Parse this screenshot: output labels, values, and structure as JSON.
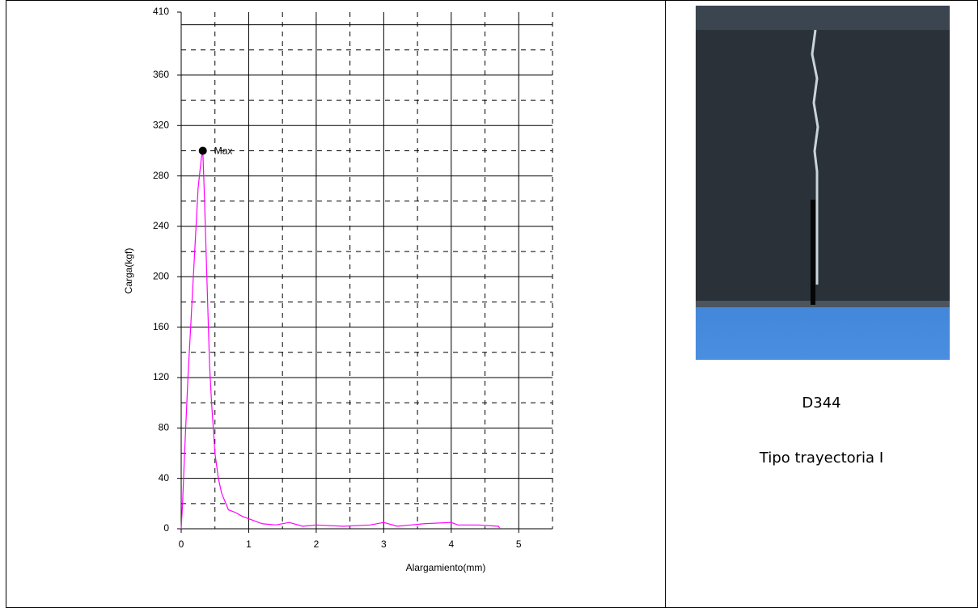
{
  "chart_data": {
    "type": "line",
    "xlabel": "Alargamiento(mm)",
    "ylabel": "Carga(kgf)",
    "x": [
      0,
      0.02,
      0.05,
      0.1,
      0.15,
      0.2,
      0.25,
      0.28,
      0.3,
      0.32,
      0.34,
      0.38,
      0.42,
      0.45,
      0.5,
      0.55,
      0.6,
      0.7,
      0.8,
      0.9,
      1.0,
      1.2,
      1.4,
      1.6,
      1.8,
      2.0,
      2.4,
      2.8,
      3.0,
      3.2,
      3.6,
      4.0,
      4.1,
      4.4,
      4.7,
      4.72
    ],
    "series": [
      {
        "color": "#ff00ff",
        "values": [
          0,
          20,
          60,
          120,
          170,
          220,
          270,
          285,
          295,
          300,
          270,
          200,
          130,
          100,
          60,
          40,
          28,
          15,
          13,
          10,
          8,
          4,
          3,
          5,
          2,
          3,
          2,
          3,
          5,
          2,
          4,
          5,
          3,
          3,
          2,
          0
        ]
      }
    ],
    "annotation": {
      "text": "Max",
      "x": 0.32,
      "y": 300
    },
    "xlim": [
      0,
      5.5
    ],
    "ylim": [
      0,
      410
    ],
    "xticks": [
      0,
      1,
      2,
      3,
      4,
      5
    ],
    "yticks": [
      0,
      40,
      80,
      120,
      160,
      200,
      240,
      280,
      320,
      360,
      410
    ],
    "ygrid": [
      0,
      40,
      80,
      120,
      160,
      200,
      240,
      280,
      320,
      360,
      400
    ],
    "xminor": [
      0.5,
      1.5,
      2.5,
      3.5,
      4.5,
      5.5
    ],
    "yminor": [
      20,
      60,
      100,
      140,
      180,
      220,
      260,
      300,
      340,
      380
    ],
    "grid": true
  },
  "caption": {
    "id": "D344",
    "trajectory": "Tipo trayectoria I"
  }
}
